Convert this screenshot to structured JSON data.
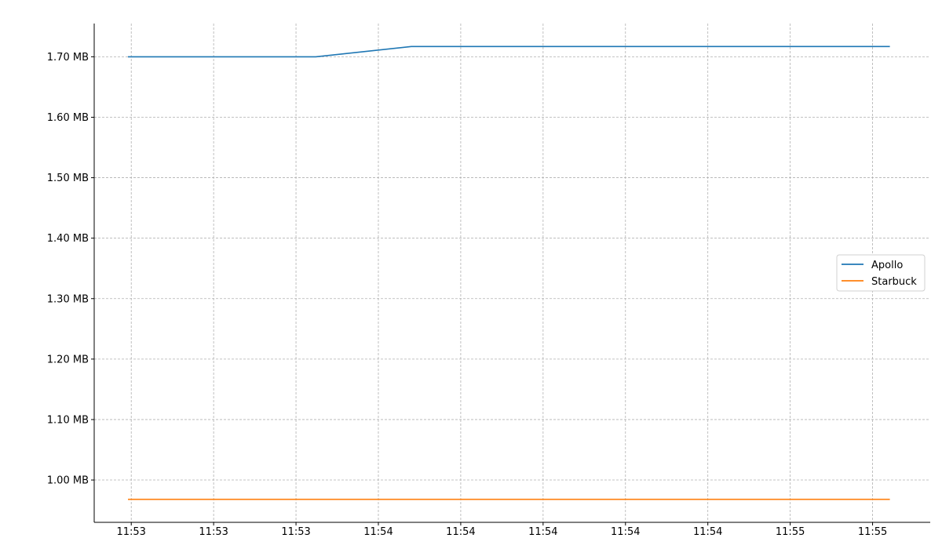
{
  "chart_data": {
    "type": "line",
    "x_tick_labels": [
      "11:53",
      "11:53",
      "11:53",
      "11:54",
      "11:54",
      "11:54",
      "11:54",
      "11:54",
      "11:55",
      "11:55"
    ],
    "y_tick_labels": [
      "1.00 MB",
      "1.10 MB",
      "1.20 MB",
      "1.30 MB",
      "1.40 MB",
      "1.50 MB",
      "1.60 MB",
      "1.70 MB"
    ],
    "y_ticks": [
      1.0,
      1.1,
      1.2,
      1.3,
      1.4,
      1.5,
      1.6,
      1.7
    ],
    "ylim": [
      0.93,
      1.755
    ],
    "xlim": [
      -0.45,
      9.7
    ],
    "grid": true,
    "legend_placement": "center-right",
    "series": [
      {
        "name": "Apollo",
        "color": "#1f77b4",
        "x": [
          -0.04,
          2.24,
          3.4,
          9.21
        ],
        "y": [
          1.7,
          1.7,
          1.717,
          1.717
        ]
      },
      {
        "name": "Starbuck",
        "color": "#ff7f0e",
        "x": [
          -0.04,
          9.21
        ],
        "y": [
          0.968,
          0.968
        ]
      }
    ]
  }
}
